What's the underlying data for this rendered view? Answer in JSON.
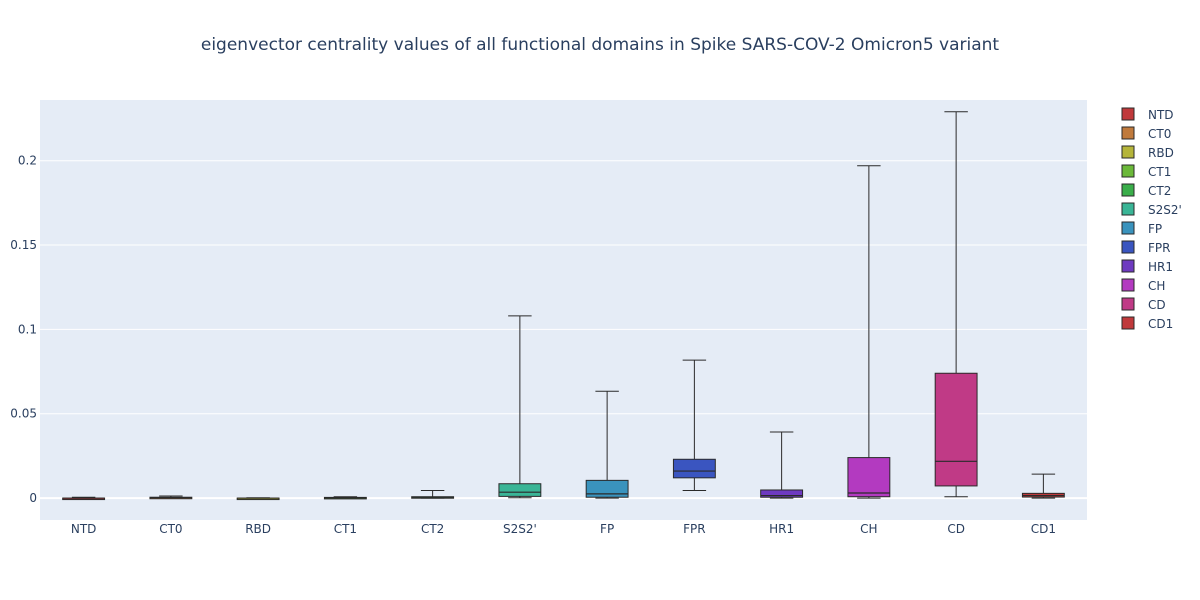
{
  "chart_data": {
    "type": "box",
    "title": "eigenvector centrality values of all functional domains in Spike SARS-COV-2 Omicron5 variant",
    "xlabel": "",
    "ylabel": "",
    "ylim": [
      -0.013,
      0.236
    ],
    "y_ticks": [
      0,
      0.05,
      0.1,
      0.15,
      0.2
    ],
    "y_tick_labels": [
      "0",
      "0.05",
      "0.1",
      "0.15",
      "0.2"
    ],
    "grid": true,
    "legend_position": "right",
    "series": [
      {
        "name": "NTD",
        "color": "#c0393b",
        "min": 0.0,
        "q1": 0.0,
        "median": 0.0,
        "q3": 0.0,
        "max": 0.0005
      },
      {
        "name": "CT0",
        "color": "#c07a3c",
        "min": 0.0,
        "q1": 0.0,
        "median": 0.0003,
        "q3": 0.0005,
        "max": 0.0012
      },
      {
        "name": "RBD",
        "color": "#b5b53a",
        "min": 0.0,
        "q1": 0.0,
        "median": 0.0,
        "q3": 0.0,
        "max": 0.0002
      },
      {
        "name": "CT1",
        "color": "#6bb93a",
        "min": 0.0,
        "q1": 0.0,
        "median": 0.0002,
        "q3": 0.0004,
        "max": 0.0008
      },
      {
        "name": "CT2",
        "color": "#3aae4a",
        "min": 0.0,
        "q1": 0.0002,
        "median": 0.0005,
        "q3": 0.0008,
        "max": 0.0045
      },
      {
        "name": "S2S2'",
        "color": "#3ab596",
        "min": 0.0002,
        "q1": 0.001,
        "median": 0.0035,
        "q3": 0.0085,
        "max": 0.108
      },
      {
        "name": "FP",
        "color": "#3a93bd",
        "min": 0.0,
        "q1": 0.0005,
        "median": 0.0025,
        "q3": 0.0105,
        "max": 0.0633
      },
      {
        "name": "FPR",
        "color": "#3a55c0",
        "min": 0.0045,
        "q1": 0.012,
        "median": 0.016,
        "q3": 0.023,
        "max": 0.0818
      },
      {
        "name": "HR1",
        "color": "#6e3ac0",
        "min": 0.0,
        "q1": 0.0005,
        "median": 0.0015,
        "q3": 0.0048,
        "max": 0.0392
      },
      {
        "name": "CH",
        "color": "#b33ac0",
        "min": 0.0,
        "q1": 0.0008,
        "median": 0.003,
        "q3": 0.024,
        "max": 0.197
      },
      {
        "name": "CD",
        "color": "#c03a86",
        "min": 0.0008,
        "q1": 0.0072,
        "median": 0.0218,
        "q3": 0.074,
        "max": 0.229
      },
      {
        "name": "CD1",
        "color": "#c0393b",
        "min": 0.0,
        "q1": 0.0006,
        "median": 0.0015,
        "q3": 0.0028,
        "max": 0.0142
      }
    ]
  }
}
